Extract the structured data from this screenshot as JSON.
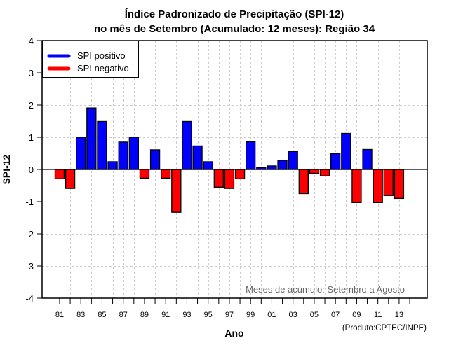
{
  "chart_data": {
    "type": "bar",
    "title": [
      "Índice Padronizado de Precipitação (SPI-12)",
      "no mês de Setembro (Acumulado: 12 meses): Região 34"
    ],
    "xlabel": "Ano",
    "ylabel": "SPI-12",
    "ylim": [
      -4,
      4
    ],
    "xlim": [
      1979.35,
      2015.65
    ],
    "yticks": [
      -4,
      -3,
      -2,
      -1,
      0,
      1,
      2,
      3,
      4
    ],
    "xticks": [
      1981,
      1982,
      1983,
      1984,
      1985,
      1986,
      1987,
      1988,
      1989,
      1990,
      1991,
      1992,
      1993,
      1994,
      1995,
      1996,
      1997,
      1998,
      1999,
      2000,
      2001,
      2002,
      2003,
      2004,
      2005,
      2006,
      2007,
      2008,
      2009,
      2010,
      2011,
      2012,
      2013,
      2014
    ],
    "xtick_labels": [
      {
        "year": 1981,
        "label": "81"
      },
      {
        "year": 1983,
        "label": "83"
      },
      {
        "year": 1985,
        "label": "85"
      },
      {
        "year": 1987,
        "label": "87"
      },
      {
        "year": 1989,
        "label": "89"
      },
      {
        "year": 1991,
        "label": "91"
      },
      {
        "year": 1993,
        "label": "93"
      },
      {
        "year": 1995,
        "label": "95"
      },
      {
        "year": 1997,
        "label": "97"
      },
      {
        "year": 1999,
        "label": "99"
      },
      {
        "year": 2001,
        "label": "01"
      },
      {
        "year": 2003,
        "label": "03"
      },
      {
        "year": 2005,
        "label": "05"
      },
      {
        "year": 2007,
        "label": "07"
      },
      {
        "year": 2009,
        "label": "09"
      },
      {
        "year": 2011,
        "label": "11"
      },
      {
        "year": 2013,
        "label": "13"
      }
    ],
    "categories": [
      1981,
      1982,
      1983,
      1984,
      1985,
      1986,
      1987,
      1988,
      1989,
      1990,
      1991,
      1992,
      1993,
      1994,
      1995,
      1996,
      1997,
      1998,
      1999,
      2000,
      2001,
      2002,
      2003,
      2004,
      2005,
      2006,
      2007,
      2008,
      2009,
      2010,
      2011,
      2012,
      2013
    ],
    "values": [
      -0.29,
      -0.59,
      1.0,
      1.91,
      1.49,
      0.24,
      0.85,
      1.0,
      -0.27,
      0.61,
      -0.27,
      -1.33,
      1.49,
      0.73,
      0.24,
      -0.55,
      -0.59,
      -0.29,
      0.86,
      0.06,
      0.11,
      0.28,
      0.56,
      -0.75,
      -0.12,
      -0.2,
      0.49,
      1.12,
      -1.03,
      0.62,
      -1.03,
      -0.81,
      -0.9
    ],
    "grid": true,
    "legend": {
      "placement": "top-left",
      "entries": [
        {
          "label": "SPI positivo",
          "color": "#0000ff"
        },
        {
          "label": "SPI negativo",
          "color": "#ff0000"
        }
      ]
    },
    "colors": {
      "positive": "#0000ff",
      "negative": "#ff0000",
      "grid": "#cccccc",
      "annotation": "#666666"
    },
    "annotation": "Meses de acúmulo: Setembro a Agosto",
    "credit": "(Produto:CPTEC/INPE)"
  }
}
